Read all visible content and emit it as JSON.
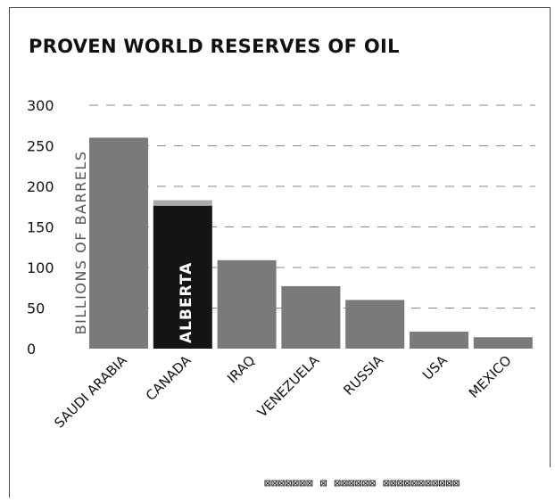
{
  "chart_data": {
    "type": "bar",
    "title": "PROVEN WORLD RESERVES OF OIL",
    "ylabel": "BILLIONS OF BARRELS",
    "xlabel": "",
    "ylim": [
      0,
      300
    ],
    "yticks": [
      0,
      50,
      100,
      150,
      200,
      250,
      300
    ],
    "grid": "dashed-horizontal",
    "categories": [
      "SAUDI ARABIA",
      "CANADA",
      "IRAQ",
      "VENEZUELA",
      "RUSSIA",
      "USA",
      "MEXICO"
    ],
    "values": [
      260,
      183,
      109,
      77,
      60,
      21,
      14
    ],
    "highlight": {
      "category": "CANADA",
      "label": "ALBERTA",
      "value": 176
    },
    "colors": {
      "bar": "#7a7a7a",
      "highlight": "#141414",
      "remainder": "#a9a9a9",
      "grid": "#888888",
      "text": "#111111"
    }
  },
  "footer": "⊠⊠⊠⊠⊠⊠⊠ ⊠ ⊠⊠⊠⊠⊠⊠ ⊠⊠⊠⊠⊠⊠⊠⊠⊠⊠⊠"
}
